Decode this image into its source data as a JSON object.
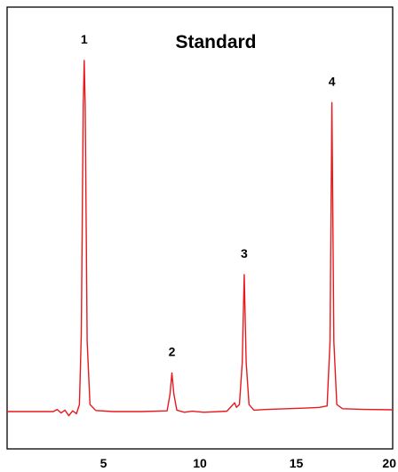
{
  "chart_data": {
    "type": "line",
    "title": "Standard",
    "xlabel": "",
    "ylabel": "",
    "xlim": [
      0,
      20
    ],
    "ylim": [
      0,
      1
    ],
    "x_ticks": [
      5,
      10,
      15,
      20
    ],
    "x_tick_labels": [
      "5",
      "10",
      "15",
      "20"
    ],
    "grid": false,
    "color": "#e8191d",
    "baseline_level": 0.0,
    "peaks": [
      {
        "label": "1",
        "x": 4.0,
        "y": 1.0
      },
      {
        "label": "2",
        "x": 8.55,
        "y": 0.11
      },
      {
        "label": "3",
        "x": 12.3,
        "y": 0.39
      },
      {
        "label": "4",
        "x": 16.85,
        "y": 0.88
      }
    ],
    "series": [
      {
        "x": [
          0.0,
          2.4,
          2.6,
          2.8,
          3.0,
          3.2,
          3.4,
          3.6,
          3.75,
          3.85,
          3.95,
          4.0,
          4.05,
          4.15,
          4.3,
          4.6,
          5.5,
          7.0,
          8.3,
          8.45,
          8.55,
          8.65,
          8.8,
          9.2,
          9.6,
          10.2,
          11.4,
          11.8,
          11.9,
          12.05,
          12.2,
          12.3,
          12.4,
          12.55,
          12.8,
          13.5,
          14.5,
          15.5,
          16.2,
          16.6,
          16.75,
          16.85,
          16.95,
          17.1,
          17.4,
          18.5,
          20.0
        ],
        "y": [
          0.0,
          0.0,
          0.006,
          -0.004,
          0.004,
          -0.012,
          0.002,
          -0.006,
          0.02,
          0.22,
          0.87,
          1.0,
          0.87,
          0.2,
          0.02,
          0.003,
          0.0,
          0.0,
          0.002,
          0.05,
          0.11,
          0.05,
          0.004,
          -0.002,
          0.001,
          -0.002,
          0.001,
          0.025,
          0.012,
          0.02,
          0.14,
          0.39,
          0.14,
          0.02,
          0.004,
          0.006,
          0.008,
          0.01,
          0.012,
          0.016,
          0.2,
          0.88,
          0.2,
          0.02,
          0.008,
          0.006,
          0.005
        ]
      }
    ]
  }
}
